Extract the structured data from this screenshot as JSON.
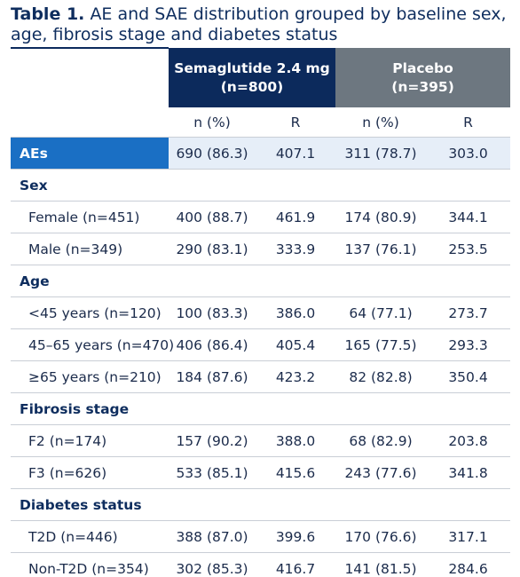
{
  "title": {
    "label": "Table 1.",
    "text": "AE and SAE distribution grouped by baseline sex, age, fibrosis stage and diabetes status"
  },
  "table": {
    "groups": [
      {
        "name": "Semaglutide 2.4 mg",
        "n": "(n=800)"
      },
      {
        "name": "Placebo",
        "n": "(n=395)"
      }
    ],
    "subheader": [
      "n (%)",
      "R",
      "n (%)",
      "R"
    ],
    "rows": [
      {
        "label": "AEs",
        "cells": [
          "690 (86.3)",
          "407.1",
          "311 (78.7)",
          "303.0"
        ]
      },
      {
        "label": "Sex"
      },
      {
        "label": "Female (n=451)",
        "cells": [
          "400 (88.7)",
          "461.9",
          "174 (80.9)",
          "344.1"
        ]
      },
      {
        "label": "Male (n=349)",
        "cells": [
          "290 (83.1)",
          "333.9",
          "137 (76.1)",
          "253.5"
        ]
      },
      {
        "label": "Age"
      },
      {
        "label": "<45 years (n=120)",
        "cells": [
          "100 (83.3)",
          "386.0",
          "64 (77.1)",
          "273.7"
        ]
      },
      {
        "label": "45–65 years (n=470)",
        "cells": [
          "406 (86.4)",
          "405.4",
          "165 (77.5)",
          "293.3"
        ]
      },
      {
        "label": "≥65 years (n=210)",
        "cells": [
          "184 (87.6)",
          "423.2",
          "82 (82.8)",
          "350.4"
        ]
      },
      {
        "label": "Fibrosis stage"
      },
      {
        "label": "F2 (n=174)",
        "cells": [
          "157 (90.2)",
          "388.0",
          "68 (82.9)",
          "203.8"
        ]
      },
      {
        "label": "F3 (n=626)",
        "cells": [
          "533 (85.1)",
          "415.6",
          "243 (77.6)",
          "341.8"
        ]
      },
      {
        "label": "Diabetes status"
      },
      {
        "label": "T2D (n=446)",
        "cells": [
          "388 (87.0)",
          "399.6",
          "170 (76.6)",
          "317.1"
        ]
      },
      {
        "label": "Non-T2D (n=354)",
        "cells": [
          "302 (85.3)",
          "416.7",
          "141 (81.5)",
          "284.6"
        ]
      }
    ]
  }
}
